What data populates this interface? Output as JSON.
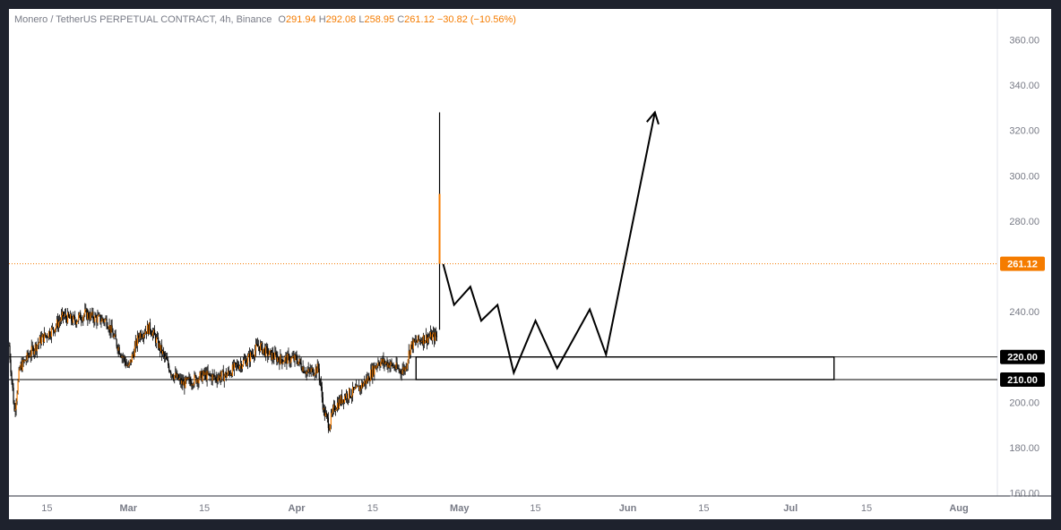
{
  "legend": {
    "symbol": "Monero / TetherUS PERPETUAL CONTRACT, 4h, Binance",
    "open_label": "O",
    "open": "291.94",
    "high_label": "H",
    "high": "292.08",
    "low_label": "L",
    "low": "258.95",
    "close_label": "C",
    "close": "261.12",
    "change": "−30.82 (−10.56%)"
  },
  "colors": {
    "candle": "#f57c00",
    "candle_wick": "#000000",
    "price_line": "#f57c00",
    "projection": "#000000",
    "zone": "#000000",
    "axis_text": "#787b86",
    "frame_bg": "#1e222d"
  },
  "chart_data": {
    "type": "candlestick",
    "title": "",
    "ylim": [
      158,
      366
    ],
    "yticks": [
      "160.00",
      "180.00",
      "200.00",
      "220.00",
      "240.00",
      "260.00",
      "280.00",
      "300.00",
      "320.00",
      "340.00",
      "360.00"
    ],
    "xlim": [
      "2024-02-08",
      "2024-08-18"
    ],
    "xticks": [
      {
        "date": "2024-02-15",
        "label": "15",
        "major": false
      },
      {
        "date": "2024-03-01",
        "label": "Mar",
        "major": true
      },
      {
        "date": "2024-03-15",
        "label": "15",
        "major": false
      },
      {
        "date": "2024-04-01",
        "label": "Apr",
        "major": true
      },
      {
        "date": "2024-04-15",
        "label": "15",
        "major": false
      },
      {
        "date": "2024-05-01",
        "label": "May",
        "major": true
      },
      {
        "date": "2024-05-15",
        "label": "15",
        "major": false
      },
      {
        "date": "2024-06-01",
        "label": "Jun",
        "major": true
      },
      {
        "date": "2024-06-15",
        "label": "15",
        "major": false
      },
      {
        "date": "2024-07-01",
        "label": "Jul",
        "major": true
      },
      {
        "date": "2024-07-15",
        "label": "15",
        "major": false
      },
      {
        "date": "2024-08-01",
        "label": "Aug",
        "major": true
      }
    ],
    "price_path": [
      [
        "2024-02-08",
        225
      ],
      [
        "2024-02-09",
        196
      ],
      [
        "2024-02-10",
        215
      ],
      [
        "2024-02-12",
        222
      ],
      [
        "2024-02-14",
        228
      ],
      [
        "2024-02-16",
        232
      ],
      [
        "2024-02-18",
        238
      ],
      [
        "2024-02-20",
        236
      ],
      [
        "2024-02-22",
        239
      ],
      [
        "2024-02-24",
        237
      ],
      [
        "2024-02-26",
        236
      ],
      [
        "2024-02-28",
        225
      ],
      [
        "2024-03-01",
        215
      ],
      [
        "2024-03-03",
        230
      ],
      [
        "2024-03-05",
        233
      ],
      [
        "2024-03-07",
        223
      ],
      [
        "2024-03-09",
        213
      ],
      [
        "2024-03-11",
        208
      ],
      [
        "2024-03-13",
        210
      ],
      [
        "2024-03-15",
        212
      ],
      [
        "2024-03-17",
        211
      ],
      [
        "2024-03-19",
        212
      ],
      [
        "2024-03-21",
        216
      ],
      [
        "2024-03-23",
        219
      ],
      [
        "2024-03-25",
        225
      ],
      [
        "2024-03-27",
        221
      ],
      [
        "2024-03-29",
        219
      ],
      [
        "2024-04-01",
        219
      ],
      [
        "2024-04-03",
        213
      ],
      [
        "2024-04-05",
        215
      ],
      [
        "2024-04-06",
        196
      ],
      [
        "2024-04-07",
        190
      ],
      [
        "2024-04-08",
        198
      ],
      [
        "2024-04-10",
        203
      ],
      [
        "2024-04-12",
        205
      ],
      [
        "2024-04-14",
        210
      ],
      [
        "2024-04-16",
        218
      ],
      [
        "2024-04-18",
        217
      ],
      [
        "2024-04-20",
        214
      ],
      [
        "2024-04-21",
        215
      ],
      [
        "2024-04-22",
        225
      ],
      [
        "2024-04-24",
        228
      ],
      [
        "2024-04-26",
        229
      ],
      [
        "2024-04-27",
        229
      ]
    ],
    "spike": {
      "date": "2024-04-27",
      "open": 232,
      "high": 328,
      "close_last": 261.12,
      "low": 258.95
    },
    "last_price": 261.12,
    "last_price_label": "261.12",
    "zone": {
      "start": "2024-04-23",
      "end": "2024-07-09",
      "low": 210,
      "high": 220
    },
    "levels": [
      {
        "value": 220,
        "label": "220.00"
      },
      {
        "value": 210,
        "label": "210.00"
      }
    ],
    "projection": [
      [
        "2024-04-28",
        261
      ],
      [
        "2024-04-30",
        243
      ],
      [
        "2024-05-03",
        251
      ],
      [
        "2024-05-05",
        236
      ],
      [
        "2024-05-08",
        243
      ],
      [
        "2024-05-11",
        213
      ],
      [
        "2024-05-15",
        236
      ],
      [
        "2024-05-19",
        215
      ],
      [
        "2024-05-25",
        241
      ],
      [
        "2024-05-28",
        221
      ],
      [
        "2024-06-06",
        328
      ]
    ]
  }
}
